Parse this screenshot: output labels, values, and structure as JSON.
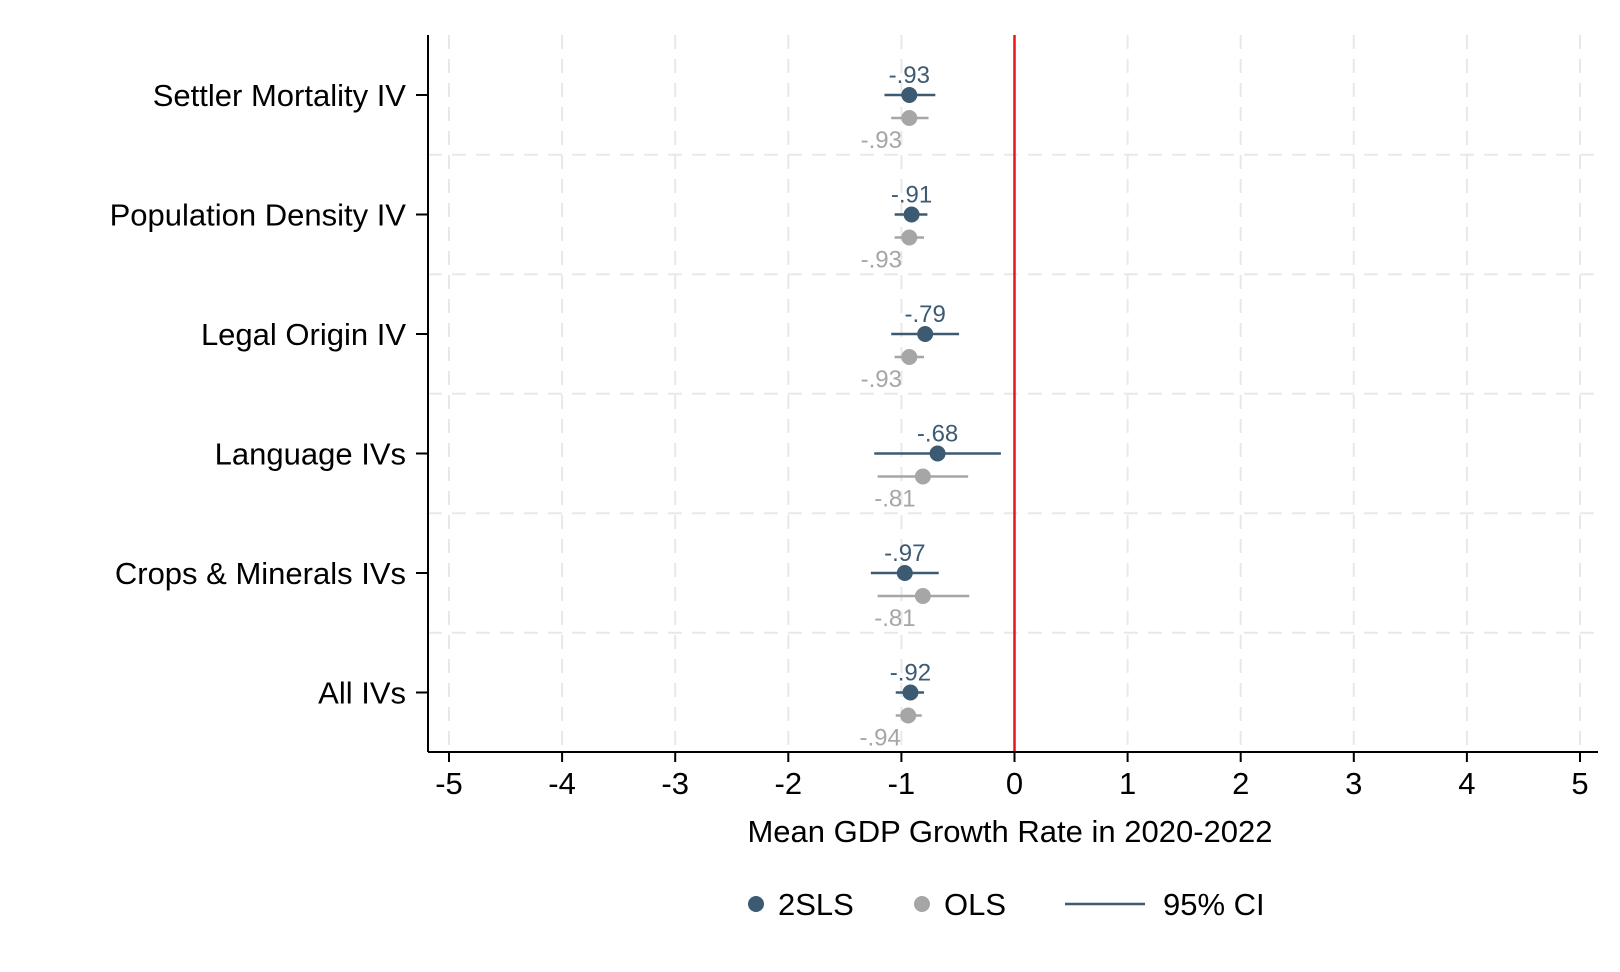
{
  "colors": {
    "series_2sls": "#3d5a73",
    "series_ols": "#a6a6a6",
    "reference_line": "#e8141c",
    "grid": "#e8e8e8",
    "axis": "#000000"
  },
  "chart_data": {
    "type": "scatter",
    "title": "",
    "xlabel": "Mean GDP Growth Rate in 2020-2022",
    "ylabel": "",
    "xlim": [
      -5,
      5
    ],
    "x_ticks": [
      "-5",
      "-4",
      "-3",
      "-2",
      "-1",
      "0",
      "1",
      "2",
      "3",
      "4",
      "5"
    ],
    "x_tick_values": [
      -5,
      -4,
      -3,
      -2,
      -1,
      0,
      1,
      2,
      3,
      4,
      5
    ],
    "grid": true,
    "reference_line_x": 0,
    "categories": [
      "Settler Mortality IV",
      "Population Density IV",
      "Legal Origin IV",
      "Language IVs",
      "Crops & Minerals IVs",
      "All IVs"
    ],
    "series": [
      {
        "name": "2SLS",
        "labels": [
          "-.93",
          "-.91",
          "-.79",
          "-.68",
          "-.97",
          "-.92"
        ],
        "values": [
          -0.93,
          -0.91,
          -0.79,
          -0.68,
          -0.97,
          -0.92
        ],
        "ci_low": [
          -1.15,
          -1.06,
          -1.09,
          -1.24,
          -1.27,
          -1.05
        ],
        "ci_high": [
          -0.7,
          -0.77,
          -0.49,
          -0.12,
          -0.67,
          -0.8
        ]
      },
      {
        "name": "OLS",
        "labels": [
          "-.93",
          "-.93",
          "-.93",
          "-.81",
          "-.81",
          "-.94"
        ],
        "values": [
          -0.93,
          -0.93,
          -0.93,
          -0.81,
          -0.81,
          -0.94
        ],
        "ci_low": [
          -1.09,
          -1.06,
          -1.06,
          -1.21,
          -1.21,
          -1.05
        ],
        "ci_high": [
          -0.76,
          -0.8,
          -0.8,
          -0.41,
          -0.4,
          -0.82
        ]
      }
    ],
    "legend": {
      "position": "bottom",
      "items": [
        "2SLS",
        "OLS",
        "95% CI"
      ]
    }
  }
}
